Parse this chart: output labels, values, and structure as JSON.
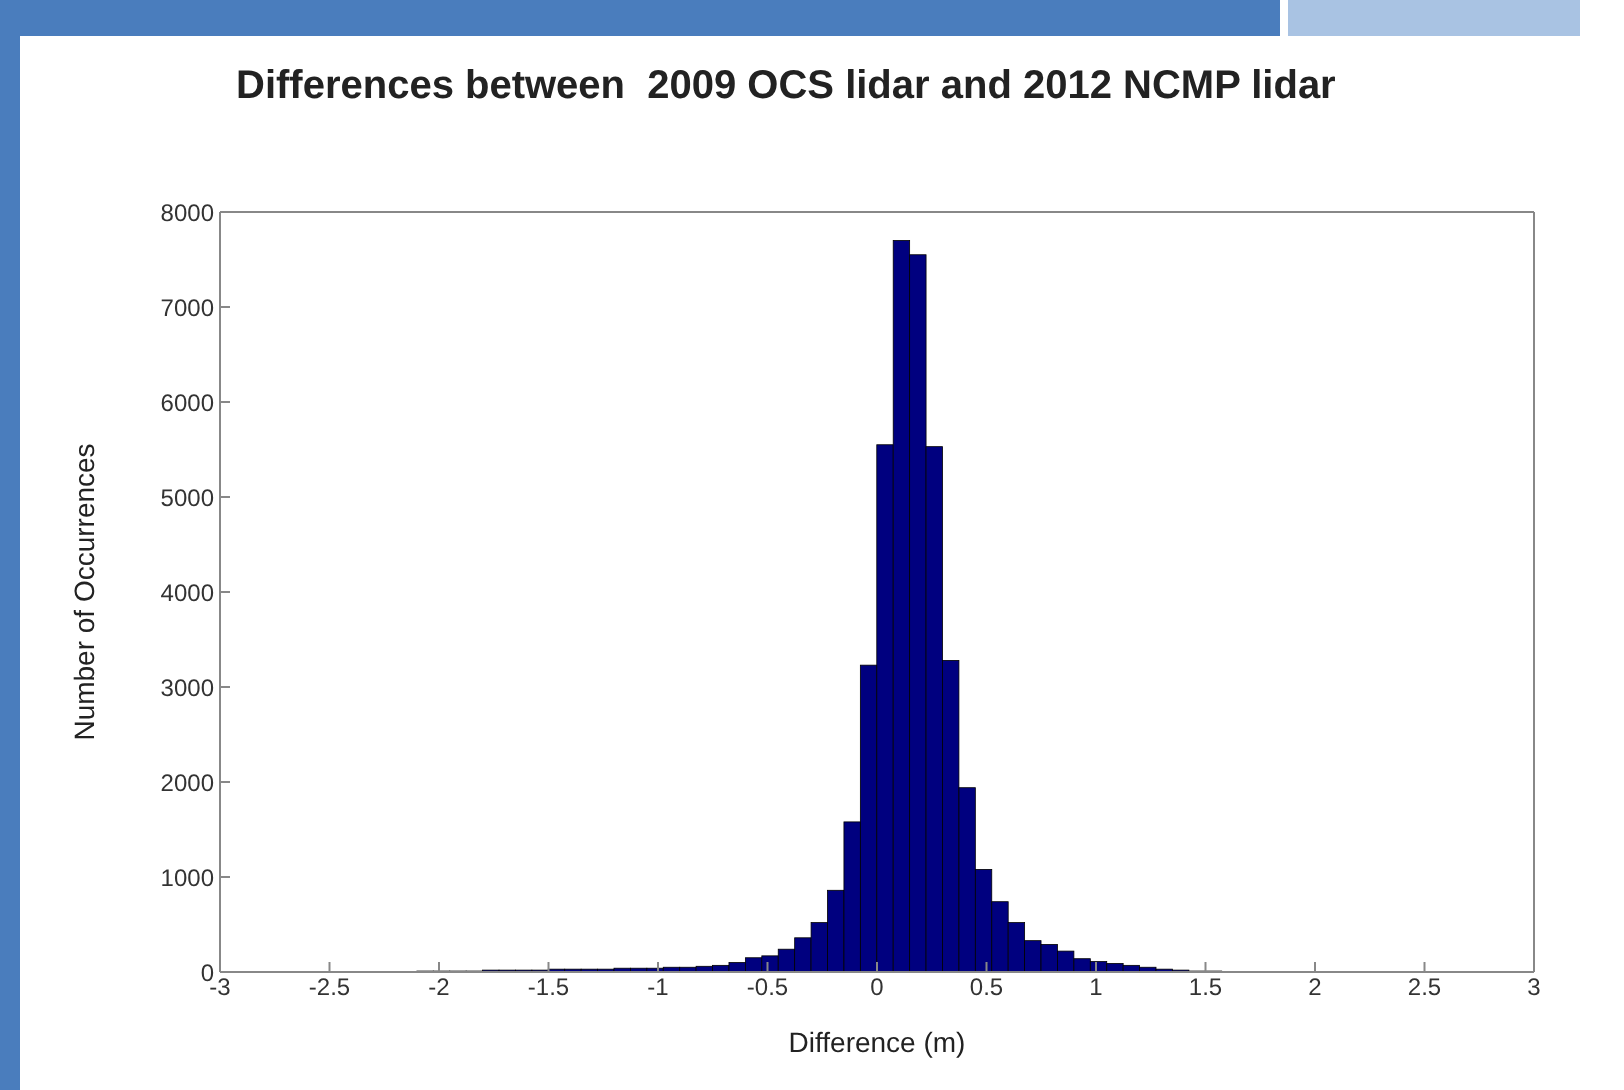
{
  "chart_data": {
    "type": "histogram",
    "title": "Differences between  2009 OCS lidar and 2012 NCMP lidar",
    "xlabel": "Difference (m)",
    "ylabel": "Number of Occurrences",
    "color": "#00007f",
    "bins": [
      -2.1,
      -2.025,
      -1.95,
      -1.875,
      -1.8,
      -1.725,
      -1.65,
      -1.575,
      -1.5,
      -1.425,
      -1.35,
      -1.275,
      -1.2,
      -1.125,
      -1.05,
      -0.975,
      -0.9,
      -0.825,
      -0.75,
      -0.675,
      -0.6,
      -0.525,
      -0.45,
      -0.375,
      -0.3,
      -0.225,
      -0.15,
      -0.075,
      0,
      0.075,
      0.15,
      0.225,
      0.3,
      0.375,
      0.45,
      0.525,
      0.6,
      0.675,
      0.75,
      0.825,
      0.9,
      0.975,
      1.05,
      1.125,
      1.2,
      1.275,
      1.35,
      1.425,
      1.5,
      1.575
    ],
    "values": [
      10,
      10,
      10,
      10,
      20,
      20,
      20,
      20,
      30,
      30,
      30,
      30,
      40,
      40,
      40,
      50,
      50,
      60,
      70,
      100,
      150,
      170,
      240,
      360,
      520,
      860,
      1580,
      3230,
      5550,
      7700,
      7550,
      5530,
      3280,
      1940,
      1080,
      740,
      520,
      330,
      290,
      220,
      140,
      110,
      90,
      70,
      50,
      30,
      20,
      10,
      10
    ],
    "xlim": [
      -3,
      3
    ],
    "xticks": [
      -3,
      -2.5,
      -2,
      -1.5,
      -1,
      -0.5,
      0,
      0.5,
      1,
      1.5,
      2,
      2.5,
      3
    ],
    "ylim": [
      0,
      8000
    ],
    "yticks": [
      0,
      1000,
      2000,
      3000,
      4000,
      5000,
      6000,
      7000,
      8000
    ],
    "grid": false
  }
}
